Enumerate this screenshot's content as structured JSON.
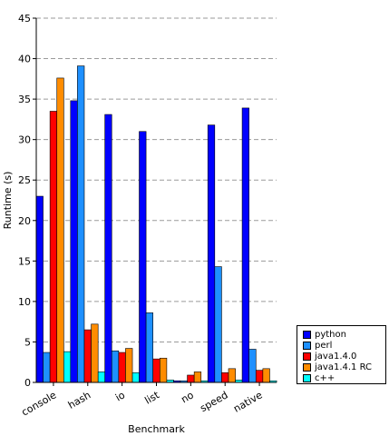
{
  "chart_data": {
    "type": "bar",
    "title": "",
    "xlabel": "Benchmark",
    "ylabel": "Runtime (s)",
    "ylim": [
      0,
      45
    ],
    "yticks": [
      0,
      5,
      10,
      15,
      20,
      25,
      30,
      35,
      40,
      45
    ],
    "grid": true,
    "legend_position": "bottom-right",
    "categories": [
      "console",
      "hash",
      "io",
      "list",
      "no",
      "speed",
      "native"
    ],
    "series": [
      {
        "name": "python",
        "color": "#0000ff",
        "values": [
          23.0,
          34.8,
          33.1,
          31.0,
          0.2,
          31.8,
          33.9
        ]
      },
      {
        "name": "perl",
        "color": "#1e90ff",
        "values": [
          3.7,
          39.1,
          3.9,
          8.6,
          0.2,
          14.3,
          4.1
        ]
      },
      {
        "name": "java1.4.0",
        "color": "#ff0000",
        "values": [
          33.5,
          6.5,
          3.7,
          2.9,
          0.9,
          1.2,
          1.5
        ]
      },
      {
        "name": "java1.4.1 RC",
        "color": "#ff8c00",
        "values": [
          37.6,
          7.2,
          4.2,
          3.0,
          1.3,
          1.7,
          1.7
        ]
      },
      {
        "name": "c++",
        "color": "#00ffff",
        "values": [
          3.8,
          1.3,
          1.2,
          0.3,
          0.2,
          0.3,
          0.2
        ]
      }
    ]
  }
}
